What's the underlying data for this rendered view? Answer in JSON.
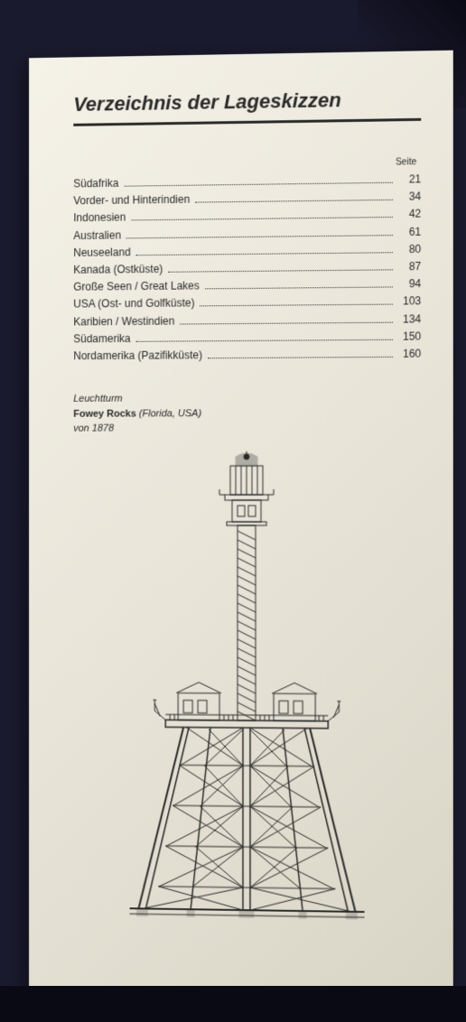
{
  "title": "Verzeichnis der Lageskizzen",
  "toc_header": "Seite",
  "toc": [
    {
      "label": "Südafrika",
      "page": "21"
    },
    {
      "label": "Vorder- und Hinterindien",
      "page": "34"
    },
    {
      "label": "Indonesien",
      "page": "42"
    },
    {
      "label": "Australien",
      "page": "61"
    },
    {
      "label": "Neuseeland",
      "page": "80"
    },
    {
      "label": "Kanada (Ostküste)",
      "page": "87"
    },
    {
      "label": "Große Seen / Great Lakes",
      "page": "94"
    },
    {
      "label": "USA (Ost- und Golfküste)",
      "page": "103"
    },
    {
      "label": "Karibien / Westindien",
      "page": "134"
    },
    {
      "label": "Südamerika",
      "page": "150"
    },
    {
      "label": "Nordamerika (Pazifikküste)",
      "page": "160"
    }
  ],
  "caption": {
    "line1_prefix": "Leuchtturm",
    "line2_bold": "Fowey Rocks",
    "line2_italic": " (Florida, USA)",
    "line3": "von 1878"
  },
  "colors": {
    "page_bg": "#f5f2e8",
    "text": "#2a2a2a",
    "outer_bg": "#1a1a2e"
  },
  "lighthouse": {
    "type": "technical-drawing",
    "stroke_color": "#2a2a2a",
    "stroke_width": 1,
    "description": "Iron skeletal lighthouse tower with central cylinder, spiral staircase, lantern room with dome top, elevated keeper's quarters on platform, supported by angled iron lattice legs with cross-bracing"
  }
}
